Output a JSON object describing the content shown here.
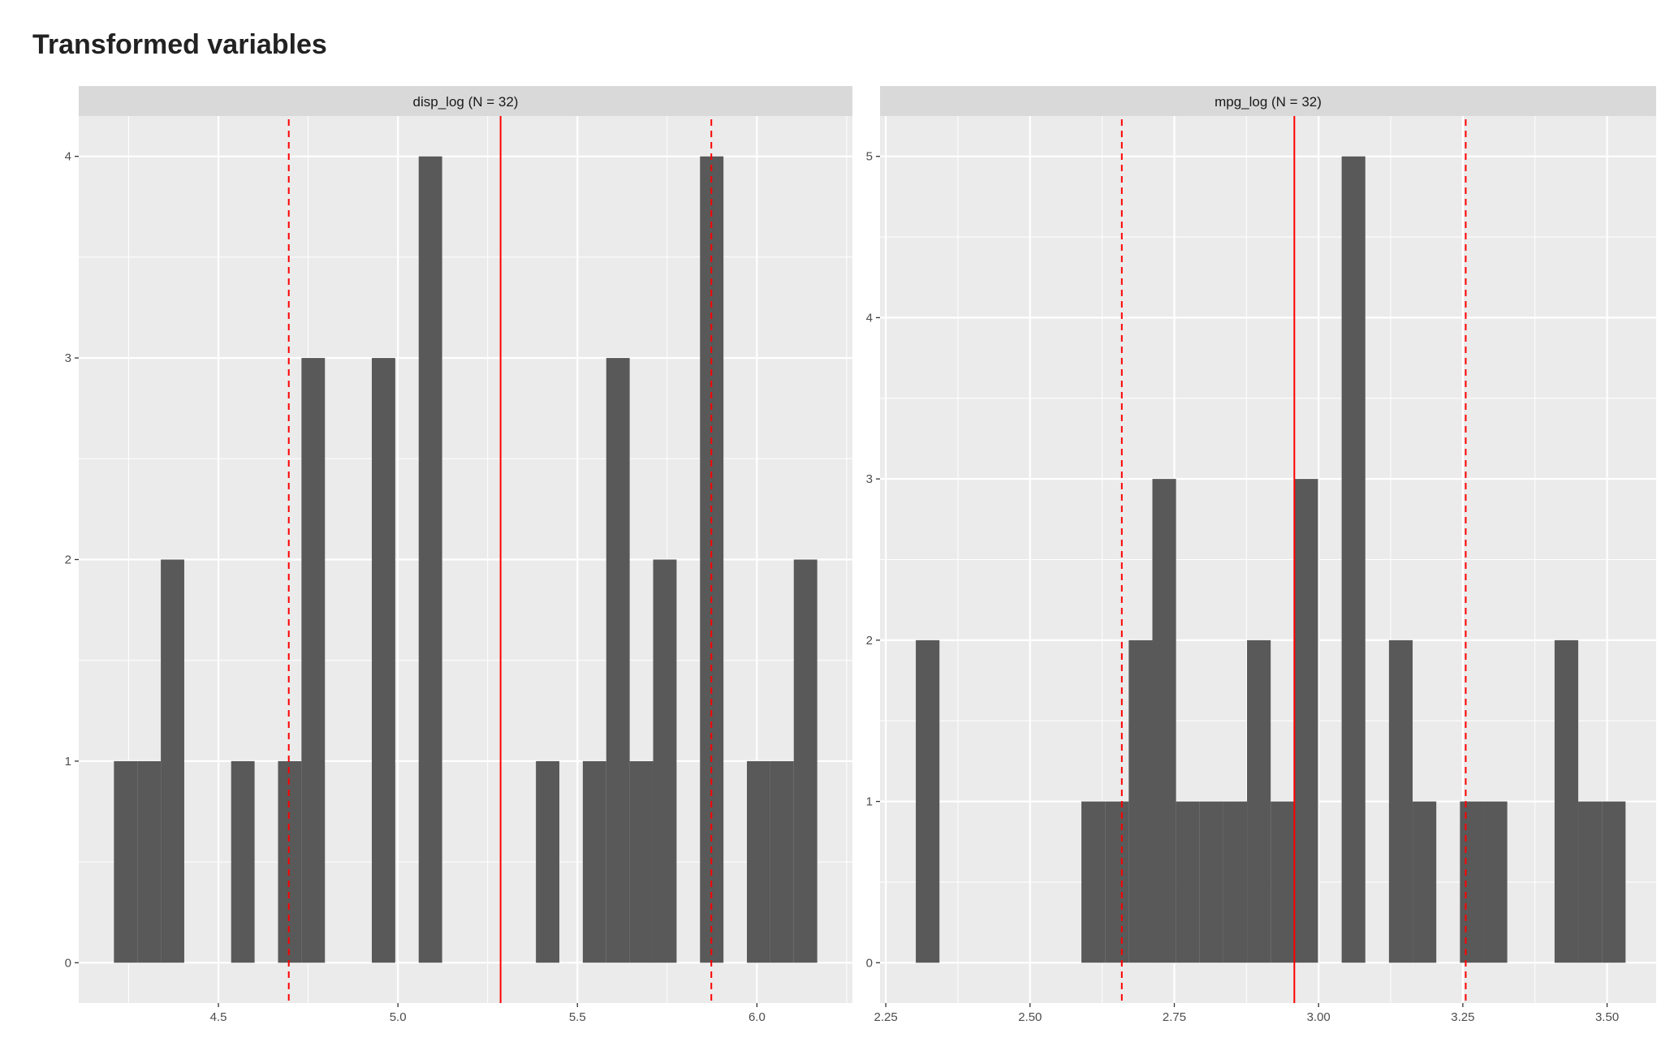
{
  "title": "Transformed variables",
  "chart_data": [
    {
      "type": "bar",
      "subtype": "histogram",
      "panel_title": "disp_log (N = 32)",
      "bin_start": 4.209,
      "bin_width": 0.0653,
      "counts": [
        1,
        1,
        2,
        0,
        0,
        1,
        0,
        1,
        3,
        0,
        0,
        3,
        0,
        4,
        0,
        0,
        0,
        0,
        1,
        0,
        1,
        3,
        1,
        2,
        0,
        4,
        0,
        1,
        1,
        2
      ],
      "xlim": [
        4.111,
        6.266
      ],
      "ylim": [
        -0.2,
        4.2
      ],
      "xticks": [
        "4.5",
        "5.0",
        "5.5",
        "6.0"
      ],
      "yticks": [
        "0",
        "1",
        "2",
        "3",
        "4"
      ],
      "mean_line": 5.286,
      "sd_lines": [
        4.696,
        5.873
      ],
      "grid": true
    },
    {
      "type": "bar",
      "subtype": "histogram",
      "panel_title": "mpg_log (N = 32)",
      "bin_start": 2.302,
      "bin_width": 0.041,
      "counts": [
        2,
        0,
        0,
        0,
        0,
        0,
        0,
        1,
        1,
        2,
        3,
        1,
        1,
        1,
        2,
        1,
        3,
        0,
        5,
        0,
        2,
        1,
        0,
        1,
        1,
        0,
        0,
        2,
        1,
        1
      ],
      "xlim": [
        2.24,
        3.585
      ],
      "ylim": [
        -0.25,
        5.25
      ],
      "xticks": [
        "2.25",
        "2.50",
        "2.75",
        "3.00",
        "3.25",
        "3.50"
      ],
      "yticks": [
        "0",
        "1",
        "2",
        "3",
        "4",
        "5"
      ],
      "mean_line": 2.958,
      "sd_lines": [
        2.659,
        3.255
      ],
      "grid": true
    }
  ],
  "colors": {
    "bar": "#595959",
    "panel": "#ebebeb",
    "strip": "#d9d9d9",
    "line": "#ff0000",
    "grid": "#ffffff"
  }
}
